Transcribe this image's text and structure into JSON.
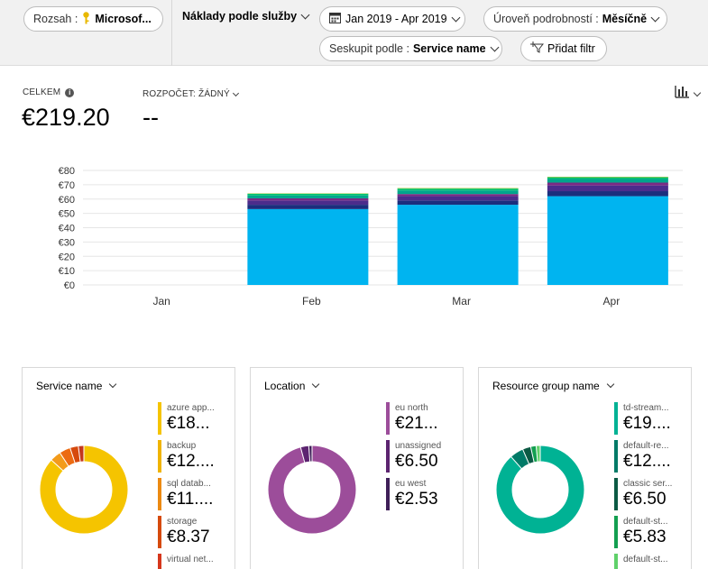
{
  "toolbar": {
    "scope_label": "Rozsah :",
    "scope_value": "Microsof...",
    "view_label": "Náklady podle služby",
    "date_range": "Jan 2019 - Apr 2019",
    "granularity_label": "Úroveň podrobností :",
    "granularity_value": "Měsíčně",
    "group_label": "Seskupit podle :",
    "group_value": "Service name",
    "add_filter": "Přidat filtr"
  },
  "summary": {
    "total_label": "CELKEM",
    "total_value": "€219.20",
    "budget_label": "ROZPOČET: ŽÁDNÝ",
    "budget_value": "--"
  },
  "chart_data": {
    "type": "bar",
    "stacked": true,
    "categories": [
      "Jan",
      "Feb",
      "Mar",
      "Apr"
    ],
    "ylim": [
      0,
      80
    ],
    "yticks": [
      "€0",
      "€10",
      "€20",
      "€30",
      "€40",
      "€50",
      "€60",
      "€70",
      "€80"
    ],
    "grid": true,
    "series": [
      {
        "color": "#00b4f0",
        "values": [
          0,
          53,
          56,
          62
        ]
      },
      {
        "color": "#1b2e7d",
        "values": [
          0,
          3,
          3,
          3.5
        ]
      },
      {
        "color": "#4b2c8c",
        "values": [
          0,
          3,
          3,
          4
        ]
      },
      {
        "color": "#7b2a84",
        "values": [
          0,
          1.5,
          1.5,
          2
        ]
      },
      {
        "color": "#00a58c",
        "values": [
          0,
          2,
          2.5,
          2.5
        ]
      },
      {
        "color": "#00c070",
        "values": [
          0,
          1.2,
          1.3,
          1.2
        ]
      },
      {
        "color": "#a6c83c",
        "values": [
          0,
          0.3,
          0.4,
          0.4
        ]
      }
    ]
  },
  "cards": [
    {
      "title": "Service name",
      "donut": [
        {
          "value": 85,
          "color": "#f5c400"
        },
        {
          "value": 4,
          "color": "#f39b1a"
        },
        {
          "value": 4,
          "color": "#ec6b12"
        },
        {
          "value": 3,
          "color": "#d64a0d"
        },
        {
          "value": 2,
          "color": "#c4361c"
        }
      ],
      "legend": [
        {
          "name": "azure app...",
          "value": "€18...",
          "color": "#f5c400"
        },
        {
          "name": "backup",
          "value": "€12....",
          "color": "#f0b400"
        },
        {
          "name": "sql datab...",
          "value": "€11....",
          "color": "#ec8a12"
        },
        {
          "name": "storage",
          "value": "€8.37",
          "color": "#d64a0d"
        },
        {
          "name": "virtual net...",
          "value": "",
          "color": "#d6371c"
        }
      ]
    },
    {
      "title": "Location",
      "donut": [
        {
          "value": 95,
          "color": "#9c4d9a"
        },
        {
          "value": 3,
          "color": "#5c2470"
        },
        {
          "value": 1.2,
          "color": "#3f1f58"
        }
      ],
      "legend": [
        {
          "name": "eu north",
          "value": "€21...",
          "color": "#9c4d9a"
        },
        {
          "name": "unassigned",
          "value": "€6.50",
          "color": "#5c2470"
        },
        {
          "name": "eu west",
          "value": "€2.53",
          "color": "#3f1f58"
        }
      ]
    },
    {
      "title": "Resource group name",
      "donut": [
        {
          "value": 88,
          "color": "#00b294"
        },
        {
          "value": 5,
          "color": "#007a67"
        },
        {
          "value": 3,
          "color": "#0b5a44"
        },
        {
          "value": 2,
          "color": "#139f50"
        },
        {
          "value": 1.5,
          "color": "#5fd16a"
        }
      ],
      "legend": [
        {
          "name": "td-stream...",
          "value": "€19....",
          "color": "#00b294"
        },
        {
          "name": "default-re...",
          "value": "€12....",
          "color": "#007a67"
        },
        {
          "name": "classic ser...",
          "value": "€6.50",
          "color": "#0b5a44"
        },
        {
          "name": "default-st...",
          "value": "€5.83",
          "color": "#139f50"
        },
        {
          "name": "default-st...",
          "value": "",
          "color": "#5fd16a"
        }
      ]
    }
  ]
}
